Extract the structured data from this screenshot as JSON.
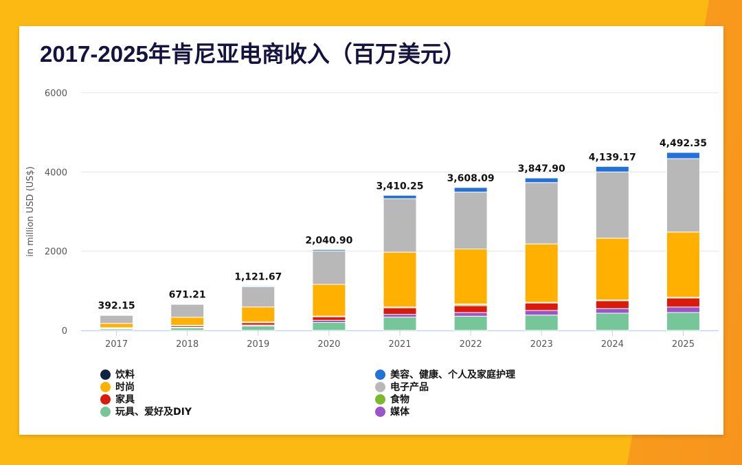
{
  "chart_data": {
    "type": "bar",
    "stacked": true,
    "title": "2017-2025年肯尼亚电商收入（百万美元）",
    "xlabel": "",
    "ylabel": "in million USD (US$)",
    "ylim": [
      0,
      6000
    ],
    "yticks": [
      "0",
      "2000",
      "4000",
      "6000"
    ],
    "grid": true,
    "legend_position": "bottom",
    "categories": [
      "2017",
      "2018",
      "2019",
      "2020",
      "2021",
      "2022",
      "2023",
      "2024",
      "2025"
    ],
    "totals": [
      "392.15",
      "671.21",
      "1,121.67",
      "2,040.90",
      "3,410.25",
      "3,608.09",
      "3,847.90",
      "4,139.17",
      "4,492.35"
    ],
    "series": [
      {
        "name": "玩具、爱好及DIY",
        "color": "#76c69a",
        "values": [
          45,
          65,
          110,
          200,
          335,
          358,
          387,
          434,
          451
        ]
      },
      {
        "name": "媒体",
        "color": "#9b55c8",
        "values": [
          5,
          15,
          25,
          55,
          70,
          92,
          116,
          116,
          139
        ]
      },
      {
        "name": "家具",
        "color": "#d91a0c",
        "values": [
          15,
          45,
          65,
          90,
          165,
          173,
          191,
          202,
          231
        ]
      },
      {
        "name": "食物",
        "color": "#7ab929",
        "values": [
          2,
          5,
          8,
          12,
          15,
          40,
          10,
          10,
          10
        ]
      },
      {
        "name": "饮料",
        "color": "#0e2442",
        "values": [
          0,
          1,
          3,
          4,
          5,
          5,
          5,
          5,
          5
        ]
      },
      {
        "name": "时尚",
        "color": "#ffb000",
        "values": [
          110,
          200,
          380,
          800,
          1385,
          1387,
          1474,
          1561,
          1647
        ]
      },
      {
        "name": "电子产品",
        "color": "#b8b8b8",
        "values": [
          210,
          330,
          510,
          845,
          1350,
          1437,
          1549,
          1672,
          1853
        ]
      },
      {
        "name": "美容、健康、个人及家庭护理",
        "color": "#2272d9",
        "values": [
          5,
          10,
          20,
          35,
          85,
          116,
          116,
          139,
          156
        ]
      }
    ]
  },
  "legend": {
    "left": [
      {
        "label": "饮料",
        "color": "#0e2442"
      },
      {
        "label": "时尚",
        "color": "#ffb000"
      },
      {
        "label": "家具",
        "color": "#d91a0c"
      },
      {
        "label": "玩具、爱好及DIY",
        "color": "#76c69a"
      }
    ],
    "right": [
      {
        "label": "美容、健康、个人及家庭护理",
        "color": "#2272d9"
      },
      {
        "label": "电子产品",
        "color": "#b8b8b8"
      },
      {
        "label": "食物",
        "color": "#7ab929"
      },
      {
        "label": "媒体",
        "color": "#9b55c8"
      }
    ]
  }
}
